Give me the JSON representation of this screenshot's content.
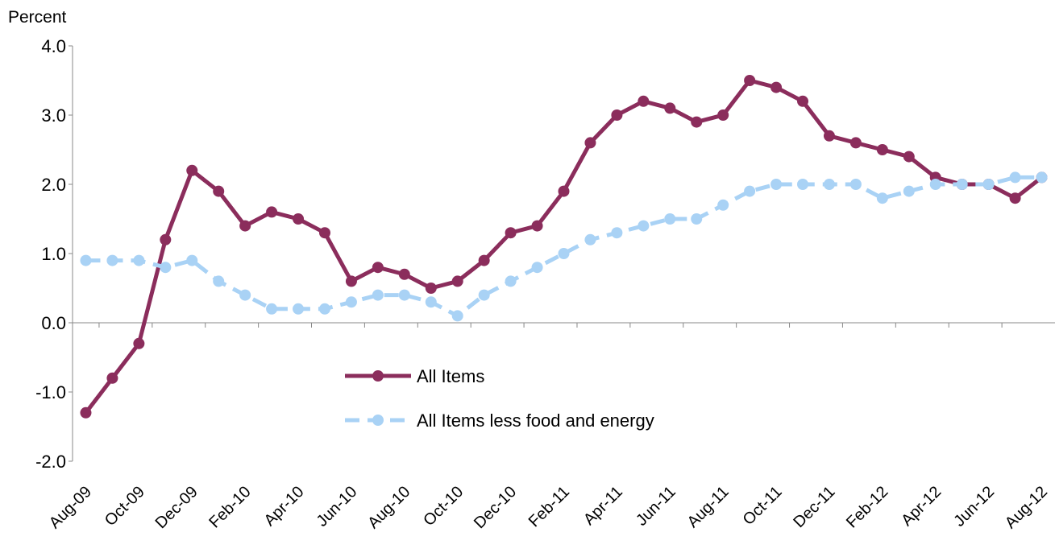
{
  "chart_data": {
    "type": "line",
    "y_label": "Percent",
    "categories": [
      "Aug-09",
      null,
      "Oct-09",
      null,
      "Dec-09",
      null,
      "Feb-10",
      null,
      "Apr-10",
      null,
      "Jun-10",
      null,
      "Aug-10",
      null,
      "Oct-10",
      null,
      "Dec-10",
      null,
      "Feb-11",
      null,
      "Apr-11",
      null,
      "Jun-11",
      null,
      "Aug-11",
      null,
      "Oct-11",
      null,
      "Dec-11",
      null,
      "Feb-12",
      null,
      "Apr-12",
      null,
      "Jun-12",
      null,
      "Aug-12"
    ],
    "series": [
      {
        "name": "All Items",
        "color": "#8b2d5c",
        "dashed": false,
        "values": [
          -1.3,
          -0.8,
          -0.3,
          1.2,
          2.2,
          1.9,
          1.4,
          1.6,
          1.5,
          1.3,
          0.6,
          0.8,
          0.7,
          0.5,
          0.6,
          0.9,
          1.3,
          1.4,
          1.9,
          2.6,
          3.0,
          3.2,
          3.1,
          2.9,
          3.0,
          3.5,
          3.4,
          3.2,
          2.7,
          2.6,
          2.5,
          2.4,
          2.1,
          2.0,
          2.0,
          1.8,
          2.1
        ]
      },
      {
        "name": "All Items less food and energy",
        "color": "#a9d2f5",
        "dashed": true,
        "values": [
          0.9,
          0.9,
          0.9,
          0.8,
          0.9,
          0.6,
          0.4,
          0.2,
          0.2,
          0.2,
          0.3,
          0.4,
          0.4,
          0.3,
          0.1,
          0.4,
          0.6,
          0.8,
          1.0,
          1.2,
          1.3,
          1.4,
          1.5,
          1.5,
          1.7,
          1.9,
          2.0,
          2.0,
          2.0,
          2.0,
          1.8,
          1.9,
          2.0,
          2.0,
          2.0,
          2.1,
          2.1
        ]
      }
    ],
    "ylim": [
      -2,
      4
    ],
    "yticks": [
      {
        "value": -2,
        "label": "-2.0"
      },
      {
        "value": -1,
        "label": "-1.0"
      },
      {
        "value": 0,
        "label": "0.0"
      },
      {
        "value": 1,
        "label": "1.0"
      },
      {
        "value": 2,
        "label": "2.0"
      },
      {
        "value": 3,
        "label": "3.0"
      },
      {
        "value": 4,
        "label": "4.0"
      }
    ],
    "grid": false
  }
}
